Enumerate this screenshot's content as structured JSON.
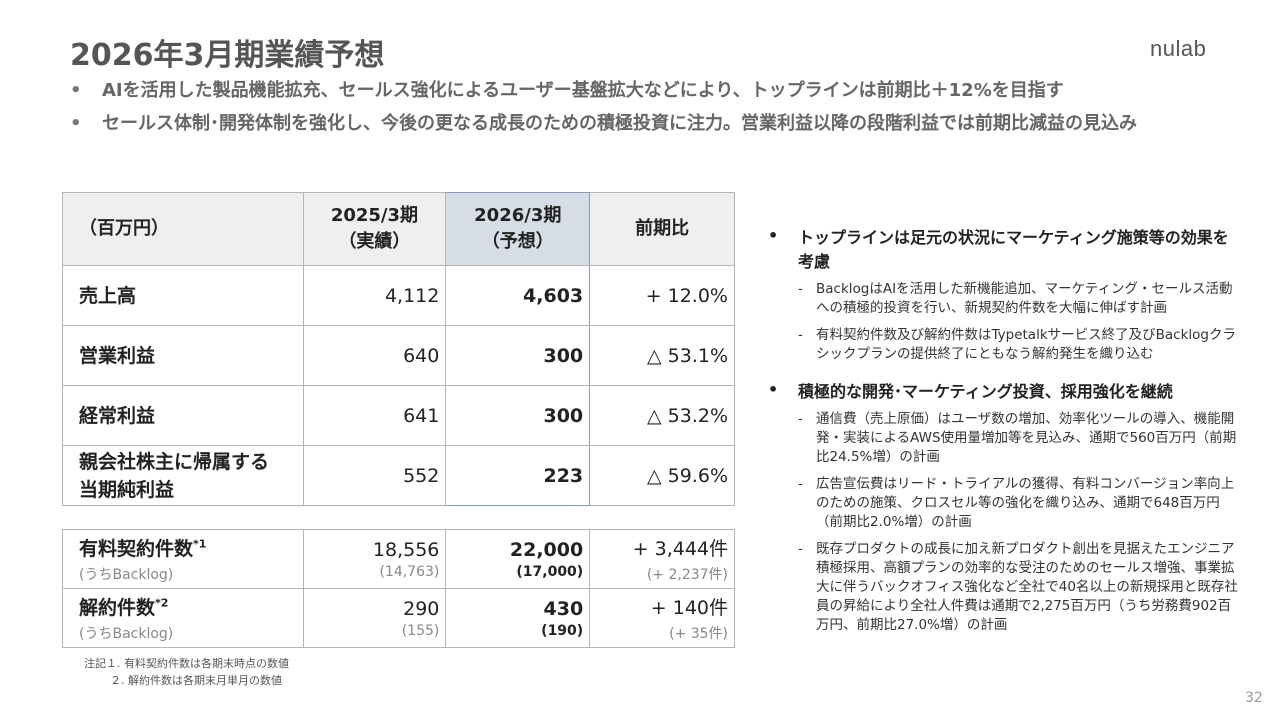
{
  "title": "2026年3月期業績予想",
  "logo": "nulab",
  "top_bullets": [
    "AIを活用した製品機能拡充、セールス強化によるユーザー基盤拡大などにより、トップラインは前期比＋12%を目指す",
    "セールス体制･開発体制を強化し、今後の更なる成長のための積極投資に注力。営業利益以降の段階利益では前期比減益の見込み"
  ],
  "bullet_char": "•",
  "main_table": {
    "headers": [
      "（百万円）",
      "2025/3期\n（実績）",
      "2026/3期\n（予想）",
      "前期比"
    ],
    "header_lines": [
      [
        "（百万円）"
      ],
      [
        "2025/3期",
        "（実績）"
      ],
      [
        "2026/3期",
        "（予想）"
      ],
      [
        "前期比"
      ]
    ],
    "rows": [
      {
        "label": "売上高",
        "actual": "4,112",
        "forecast": "4,603",
        "change": "+ 12.0%"
      },
      {
        "label": "営業利益",
        "actual": "640",
        "forecast": "300",
        "change": "△ 53.1%"
      },
      {
        "label": "経常利益",
        "actual": "641",
        "forecast": "300",
        "change": "△ 53.2%"
      },
      {
        "label": "親会社株主に帰属する当期純利益",
        "label_lines": [
          "親会社株主に帰属する",
          "当期純利益"
        ],
        "actual": "552",
        "forecast": "223",
        "change": "△ 59.6%"
      }
    ]
  },
  "sub_table": {
    "rows": [
      {
        "label": "有料契約件数",
        "sup": "*1",
        "sub_label": "(うちBacklog)",
        "actual": "18,556",
        "actual_sub": "(14,763)",
        "forecast": "22,000",
        "forecast_sub": "(17,000)",
        "change": "+ 3,444件",
        "change_sub": "(+ 2,237件)"
      },
      {
        "label": "解約件数",
        "sup": "*2",
        "sub_label": "(うちBacklog)",
        "actual": "290",
        "actual_sub": "(155)",
        "forecast": "430",
        "forecast_sub": "(190)",
        "change": "+ 140件",
        "change_sub": "(+ 35件)"
      }
    ]
  },
  "notes": [
    "注記１. 有料契約件数は各期末時点の数値",
    "２. 解約件数は各期末月単月の数値"
  ],
  "right_bullets": [
    {
      "head": "トップラインは足元の状況にマーケティング施策等の効果を考慮",
      "items": [
        "BacklogはAIを活用した新機能追加、マーケティング・セールス活動への積極的投資を行い、新規契約件数を大幅に伸ばす計画",
        "有料契約件数及び解約件数はTypetalkサービス終了及びBacklogクラシックプランの提供終了にともなう解約発生を織り込む"
      ]
    },
    {
      "head": "積極的な開発･マーケティング投資、採用強化を継続",
      "items": [
        "通信費（売上原価）はユーザ数の増加、効率化ツールの導入、機能開発・実装によるAWS使用量増加等を見込み、通期で560百万円（前期比24.5%増）の計画",
        "広告宣伝費はリード・トライアルの獲得、有料コンバージョン率向上のための施策、クロスセル等の強化を織り込み、通期で648百万円（前期比2.0%増）の計画",
        "既存プロダクトの成長に加え新プロダクト創出を見据えたエンジニア積極採用、高額プランの効率的な受注のためのセールス増強、事業拡大に伴うバックオフィス強化など全社で40名以上の新規採用と既存社員の昇給により全社人件費は通期で2,275百万円（うち労務費902百万円、前期比27.0%増）の計画"
      ]
    }
  ],
  "dash_char": "-",
  "page_number": "32",
  "colors": {
    "title": "#555555",
    "highlight_header": "#d7dde6",
    "header_bg": "#efefef"
  }
}
